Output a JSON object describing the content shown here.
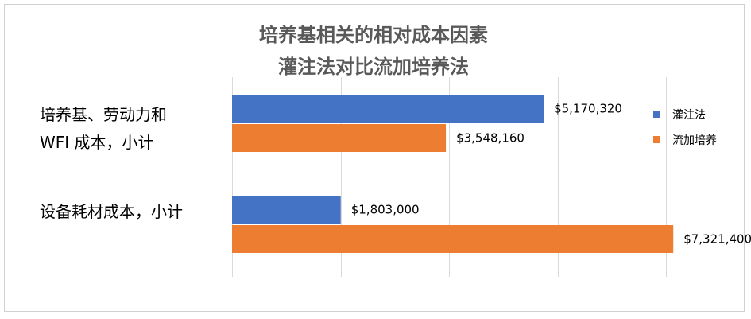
{
  "chart_data": {
    "type": "bar",
    "orientation": "horizontal",
    "title_lines": [
      "培养基相关的相对成本因素",
      "灌注法对比流加培养法"
    ],
    "categories": [
      {
        "lines": [
          "培养基、劳动力和",
          "WFI 成本，小计"
        ]
      },
      {
        "lines": [
          "设备耗材成本，小计"
        ]
      }
    ],
    "series": [
      {
        "name": "灌注法",
        "color": "#4472C4",
        "values": [
          5170320,
          1803000
        ],
        "labels": [
          "$5,170,320",
          "$1,803,000"
        ]
      },
      {
        "name": "流加培养",
        "color": "#ED7D31",
        "values": [
          3548160,
          7321400
        ],
        "labels": [
          "$3,548,160",
          "$7,321,400"
        ]
      }
    ],
    "xlim": [
      0,
      8000000
    ],
    "x_gridlines": [
      1800000,
      3600000,
      5400000,
      7200000
    ],
    "grid": true,
    "legend_position": "right"
  }
}
